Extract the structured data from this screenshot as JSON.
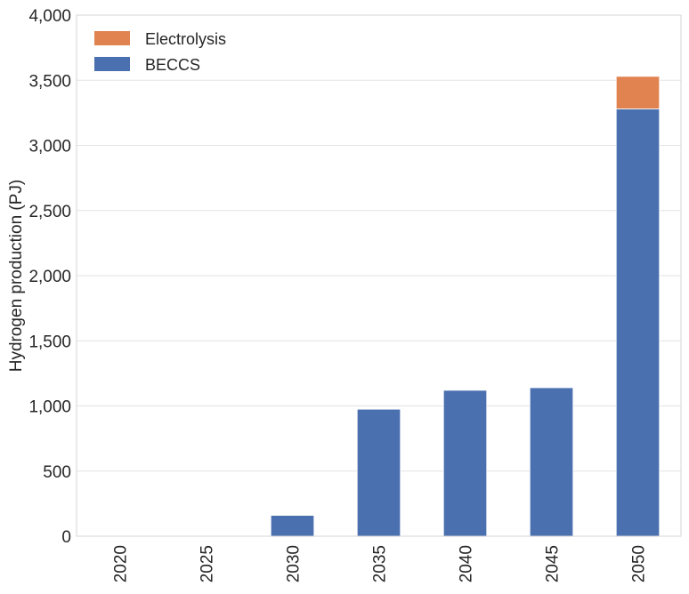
{
  "chart_data": {
    "type": "bar",
    "stacked": true,
    "categories": [
      "2020",
      "2025",
      "2030",
      "2035",
      "2040",
      "2045",
      "2050"
    ],
    "series": [
      {
        "name": "BECCS",
        "color": "#4a70b0",
        "values": [
          0,
          0,
          160,
          975,
          1120,
          1140,
          3280
        ]
      },
      {
        "name": "Electrolysis",
        "color": "#e08350",
        "values": [
          0,
          0,
          0,
          0,
          0,
          0,
          250
        ]
      }
    ],
    "ylabel": "Hydrogen production (PJ)",
    "xlabel": "",
    "ylim": [
      0,
      4000
    ],
    "yticks": [
      0,
      500,
      1000,
      1500,
      2000,
      2500,
      3000,
      3500,
      4000
    ],
    "ytick_labels": [
      "0",
      "500",
      "1,000",
      "1,500",
      "2,000",
      "2,500",
      "3,000",
      "3,500",
      "4,000"
    ],
    "grid": true,
    "legend_position": "top-left",
    "legend_order": [
      "Electrolysis",
      "BECCS"
    ]
  }
}
